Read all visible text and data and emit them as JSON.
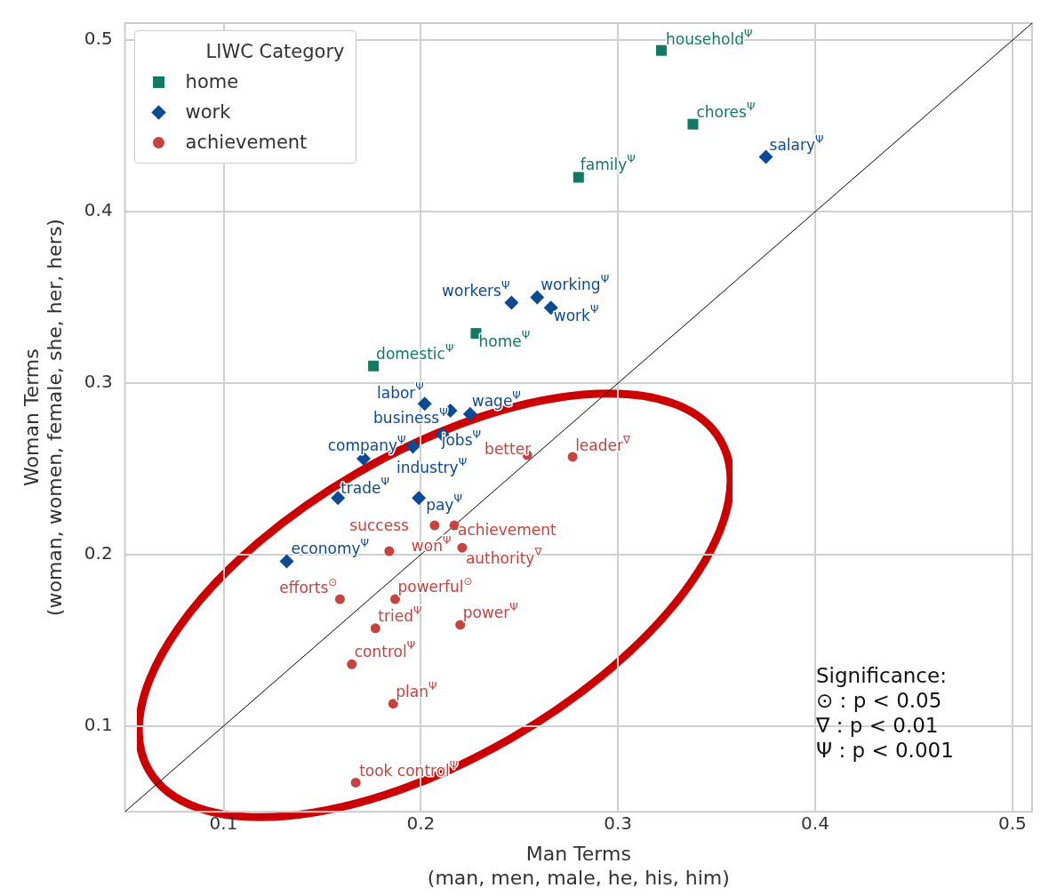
{
  "chart_data": {
    "type": "scatter",
    "xlabel": "Man Terms\n(man, men, male, he, his, him)",
    "ylabel": "Woman Terms\n(woman, women, female, she, her, hers)",
    "legend_title": "LIWC Category",
    "legend": "top left",
    "grid": true,
    "xlim": [
      0.05,
      0.51
    ],
    "ylim": [
      0.05,
      0.51
    ],
    "xticks": [
      0.1,
      0.2,
      0.3,
      0.4,
      0.5
    ],
    "yticks": [
      0.1,
      0.2,
      0.3,
      0.4,
      0.5
    ],
    "series": [
      {
        "name": "home",
        "color": "#127a62",
        "marker": "square",
        "x": [
          0.322,
          0.338,
          0.28,
          0.228,
          0.176
        ],
        "values": [
          0.494,
          0.451,
          0.42,
          0.329,
          0.31
        ]
      },
      {
        "name": "work",
        "color": "#0c4a94",
        "marker": "diamond",
        "x": [
          0.375,
          0.259,
          0.246,
          0.266,
          0.202,
          0.215,
          0.225,
          0.211,
          0.196,
          0.171,
          0.158,
          0.199,
          0.132
        ],
        "values": [
          0.432,
          0.35,
          0.347,
          0.344,
          0.288,
          0.284,
          0.282,
          0.27,
          0.263,
          0.256,
          0.233,
          0.233,
          0.196
        ]
      },
      {
        "name": "achievement",
        "color": "#c8423f",
        "marker": "circle",
        "x": [
          0.254,
          0.277,
          0.207,
          0.217,
          0.184,
          0.221,
          0.159,
          0.187,
          0.177,
          0.22,
          0.165,
          0.186,
          0.167
        ],
        "values": [
          0.258,
          0.257,
          0.217,
          0.217,
          0.202,
          0.204,
          0.174,
          0.174,
          0.157,
          0.159,
          0.136,
          0.113,
          0.067
        ]
      },
      {
        "type": "line",
        "color": "#000000",
        "marker": "none",
        "x": [
          0.05,
          0.51
        ],
        "values": [
          0.05,
          0.51
        ]
      }
    ],
    "annotations": [
      {
        "text": "household$^{Ψ}$",
        "x": 0.322,
        "y": 0.494
      },
      {
        "text": "chores$^{Ψ}$",
        "x": 0.338,
        "y": 0.451
      },
      {
        "text": "family$^{Ψ}$",
        "x": 0.28,
        "y": 0.42
      },
      {
        "text": "home$^{Ψ}$",
        "x": 0.228,
        "y": 0.329
      },
      {
        "text": "domestic$^{Ψ}$",
        "x": 0.176,
        "y": 0.31
      },
      {
        "text": "salary$^{Ψ}$",
        "x": 0.375,
        "y": 0.432
      },
      {
        "text": "working$^{Ψ}$",
        "x": 0.259,
        "y": 0.35
      },
      {
        "text": "workers$^{Ψ}$",
        "x": 0.246,
        "y": 0.347
      },
      {
        "text": "work$^{Ψ}$",
        "x": 0.266,
        "y": 0.344
      },
      {
        "text": "labor$^{Ψ}$",
        "x": 0.202,
        "y": 0.288
      },
      {
        "text": "business$^{Ψ}$",
        "x": 0.215,
        "y": 0.284
      },
      {
        "text": "wage$^{Ψ}$",
        "x": 0.225,
        "y": 0.282
      },
      {
        "text": "jobs$^{Ψ}$",
        "x": 0.211,
        "y": 0.27
      },
      {
        "text": "company$^{Ψ}$",
        "x": 0.196,
        "y": 0.263
      },
      {
        "text": "industry$^{Ψ}$",
        "x": 0.171,
        "y": 0.256
      },
      {
        "text": "trade$^{Ψ}$",
        "x": 0.158,
        "y": 0.233
      },
      {
        "text": "pay$^{Ψ}$",
        "x": 0.199,
        "y": 0.233
      },
      {
        "text": "economy$^{Ψ}$",
        "x": 0.132,
        "y": 0.196
      },
      {
        "text": "better",
        "x": 0.254,
        "y": 0.258
      },
      {
        "text": "leader$^{∇}$",
        "x": 0.277,
        "y": 0.257
      },
      {
        "text": "success",
        "x": 0.207,
        "y": 0.217
      },
      {
        "text": "achievement",
        "x": 0.217,
        "y": 0.217
      },
      {
        "text": "won$^{Ψ}$",
        "x": 0.184,
        "y": 0.202
      },
      {
        "text": "authority$^{∇}$",
        "x": 0.221,
        "y": 0.204
      },
      {
        "text": "efforts$^{⊙}$",
        "x": 0.159,
        "y": 0.174
      },
      {
        "text": "powerful$^{⊙}$",
        "x": 0.187,
        "y": 0.174
      },
      {
        "text": "tried$^{Ψ}$",
        "x": 0.177,
        "y": 0.157
      },
      {
        "text": "power$^{Ψ}$",
        "x": 0.22,
        "y": 0.159
      },
      {
        "text": "control$^{Ψ}$",
        "x": 0.165,
        "y": 0.136
      },
      {
        "text": "plan$^{Ψ}$",
        "x": 0.186,
        "y": 0.113
      },
      {
        "text": "took control$^{Ψ}$",
        "x": 0.167,
        "y": 0.067
      },
      "Significance:",
      "⊙ : p < 0.05",
      "∇ : p < 0.01",
      "Ψ : p < 0.001"
    ]
  }
}
